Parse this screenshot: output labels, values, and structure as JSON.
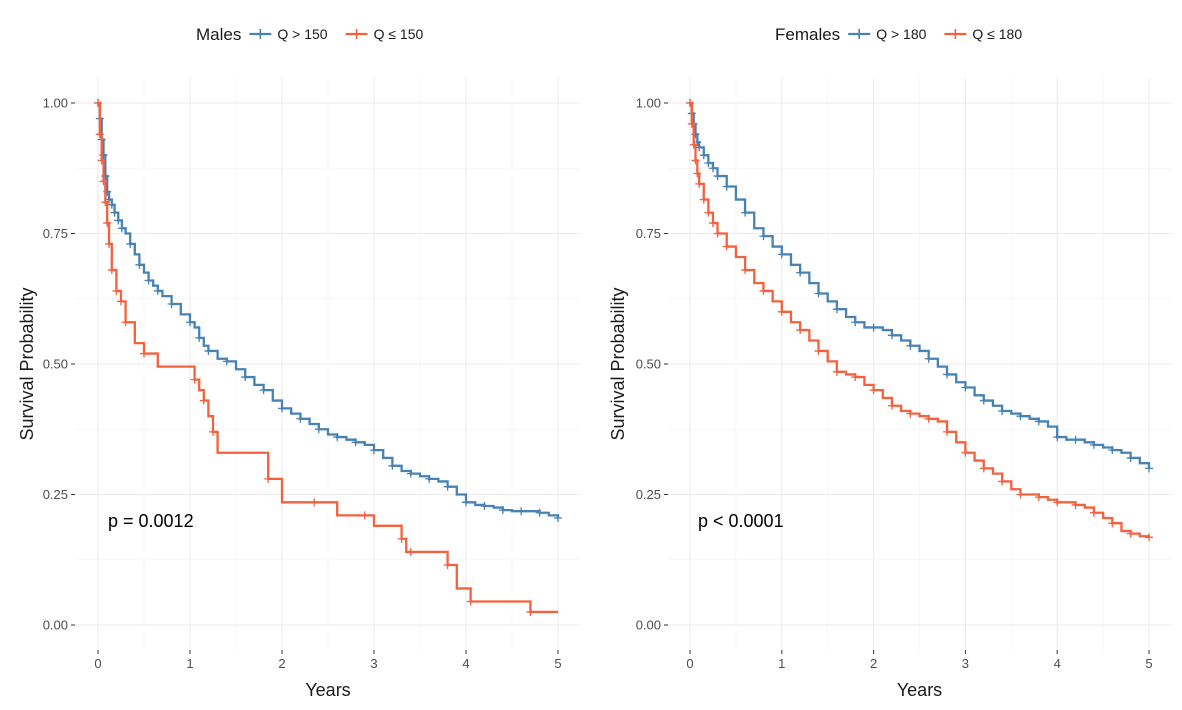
{
  "chart_data": [
    {
      "type": "line",
      "subtype": "kaplan-meier step",
      "legend_title": "Males",
      "xlabel": "Years",
      "ylabel": "Survival Probability",
      "xlim": [
        0,
        5
      ],
      "ylim": [
        0,
        1
      ],
      "x_ticks": [
        "0",
        "1",
        "2",
        "3",
        "4",
        "5"
      ],
      "y_ticks": [
        "0.00",
        "0.25",
        "0.50",
        "0.75",
        "1.00"
      ],
      "annotation": "p = 0.0012",
      "legend_position": "top",
      "series": [
        {
          "name": "Q > 150",
          "color": "#4682B4",
          "x": [
            0,
            0.02,
            0.04,
            0.06,
            0.08,
            0.1,
            0.12,
            0.15,
            0.18,
            0.22,
            0.26,
            0.3,
            0.35,
            0.4,
            0.45,
            0.5,
            0.55,
            0.6,
            0.65,
            0.7,
            0.8,
            0.9,
            1.0,
            1.05,
            1.1,
            1.15,
            1.2,
            1.3,
            1.4,
            1.5,
            1.6,
            1.7,
            1.8,
            1.9,
            2.0,
            2.1,
            2.2,
            2.3,
            2.4,
            2.5,
            2.6,
            2.7,
            2.8,
            2.9,
            3.0,
            3.1,
            3.2,
            3.3,
            3.4,
            3.5,
            3.6,
            3.7,
            3.8,
            3.9,
            4.0,
            4.1,
            4.2,
            4.3,
            4.4,
            4.5,
            4.6,
            4.7,
            4.8,
            4.9,
            5.0
          ],
          "values": [
            1.0,
            0.97,
            0.93,
            0.9,
            0.86,
            0.83,
            0.815,
            0.805,
            0.79,
            0.775,
            0.76,
            0.75,
            0.73,
            0.71,
            0.69,
            0.675,
            0.66,
            0.65,
            0.64,
            0.63,
            0.615,
            0.595,
            0.58,
            0.57,
            0.55,
            0.535,
            0.525,
            0.51,
            0.505,
            0.49,
            0.475,
            0.46,
            0.45,
            0.43,
            0.415,
            0.405,
            0.395,
            0.385,
            0.375,
            0.365,
            0.36,
            0.355,
            0.35,
            0.345,
            0.335,
            0.32,
            0.305,
            0.295,
            0.29,
            0.285,
            0.28,
            0.275,
            0.265,
            0.25,
            0.235,
            0.23,
            0.228,
            0.225,
            0.22,
            0.218,
            0.218,
            0.218,
            0.215,
            0.21,
            0.205
          ]
        },
        {
          "name": "Q ≤ 150",
          "color": "#F4613E",
          "x": [
            0,
            0.02,
            0.04,
            0.06,
            0.08,
            0.1,
            0.12,
            0.15,
            0.2,
            0.25,
            0.3,
            0.4,
            0.5,
            0.65,
            1.05,
            1.1,
            1.15,
            1.2,
            1.25,
            1.3,
            1.85,
            2.0,
            2.35,
            2.6,
            2.9,
            3.0,
            3.3,
            3.35,
            3.4,
            3.6,
            3.8,
            3.9,
            4.05,
            4.4,
            4.7,
            5.0
          ],
          "values": [
            1.0,
            0.94,
            0.89,
            0.85,
            0.81,
            0.77,
            0.73,
            0.68,
            0.64,
            0.62,
            0.58,
            0.54,
            0.52,
            0.495,
            0.47,
            0.45,
            0.43,
            0.4,
            0.37,
            0.33,
            0.28,
            0.235,
            0.235,
            0.21,
            0.21,
            0.19,
            0.165,
            0.14,
            0.14,
            0.14,
            0.115,
            0.07,
            0.045,
            0.045,
            0.025,
            0.025
          ]
        }
      ]
    },
    {
      "type": "line",
      "subtype": "kaplan-meier step",
      "legend_title": "Females",
      "xlabel": "Years",
      "ylabel": "Survival Probability",
      "xlim": [
        0,
        5
      ],
      "ylim": [
        0,
        1
      ],
      "x_ticks": [
        "0",
        "1",
        "2",
        "3",
        "4",
        "5"
      ],
      "y_ticks": [
        "0.00",
        "0.25",
        "0.50",
        "0.75",
        "1.00"
      ],
      "annotation": "p < 0.0001",
      "legend_position": "top",
      "series": [
        {
          "name": "Q > 180",
          "color": "#4682B4",
          "x": [
            0,
            0.02,
            0.04,
            0.06,
            0.08,
            0.1,
            0.15,
            0.2,
            0.25,
            0.3,
            0.4,
            0.5,
            0.6,
            0.7,
            0.8,
            0.9,
            1.0,
            1.1,
            1.2,
            1.3,
            1.4,
            1.5,
            1.6,
            1.7,
            1.8,
            1.9,
            2.0,
            2.1,
            2.2,
            2.3,
            2.4,
            2.5,
            2.6,
            2.7,
            2.8,
            2.9,
            3.0,
            3.1,
            3.2,
            3.3,
            3.4,
            3.5,
            3.6,
            3.7,
            3.8,
            3.9,
            4.0,
            4.1,
            4.2,
            4.3,
            4.4,
            4.5,
            4.6,
            4.7,
            4.8,
            4.9,
            5.0
          ],
          "values": [
            1.0,
            0.98,
            0.96,
            0.94,
            0.925,
            0.915,
            0.9,
            0.885,
            0.875,
            0.86,
            0.84,
            0.815,
            0.79,
            0.76,
            0.745,
            0.725,
            0.71,
            0.69,
            0.675,
            0.655,
            0.635,
            0.62,
            0.605,
            0.59,
            0.58,
            0.57,
            0.57,
            0.565,
            0.555,
            0.545,
            0.535,
            0.525,
            0.51,
            0.495,
            0.48,
            0.465,
            0.455,
            0.44,
            0.43,
            0.42,
            0.41,
            0.405,
            0.4,
            0.395,
            0.39,
            0.38,
            0.36,
            0.355,
            0.355,
            0.35,
            0.345,
            0.34,
            0.335,
            0.33,
            0.32,
            0.31,
            0.3
          ]
        },
        {
          "name": "Q ≤ 180",
          "color": "#F4613E",
          "x": [
            0,
            0.02,
            0.04,
            0.06,
            0.08,
            0.1,
            0.15,
            0.2,
            0.25,
            0.3,
            0.4,
            0.5,
            0.6,
            0.7,
            0.8,
            0.9,
            1.0,
            1.1,
            1.2,
            1.3,
            1.4,
            1.5,
            1.6,
            1.7,
            1.8,
            1.9,
            2.0,
            2.1,
            2.2,
            2.3,
            2.4,
            2.5,
            2.6,
            2.7,
            2.8,
            2.9,
            3.0,
            3.1,
            3.2,
            3.3,
            3.4,
            3.5,
            3.6,
            3.7,
            3.8,
            3.9,
            4.0,
            4.1,
            4.2,
            4.3,
            4.4,
            4.5,
            4.6,
            4.7,
            4.8,
            4.9,
            5.0
          ],
          "values": [
            1.0,
            0.96,
            0.92,
            0.89,
            0.865,
            0.845,
            0.815,
            0.79,
            0.77,
            0.75,
            0.725,
            0.705,
            0.68,
            0.655,
            0.64,
            0.62,
            0.6,
            0.58,
            0.565,
            0.545,
            0.525,
            0.505,
            0.485,
            0.48,
            0.475,
            0.46,
            0.45,
            0.435,
            0.42,
            0.41,
            0.405,
            0.4,
            0.395,
            0.39,
            0.37,
            0.35,
            0.33,
            0.315,
            0.3,
            0.29,
            0.275,
            0.26,
            0.25,
            0.25,
            0.245,
            0.24,
            0.235,
            0.235,
            0.23,
            0.225,
            0.215,
            0.205,
            0.195,
            0.18,
            0.175,
            0.17,
            0.168
          ]
        }
      ]
    }
  ]
}
